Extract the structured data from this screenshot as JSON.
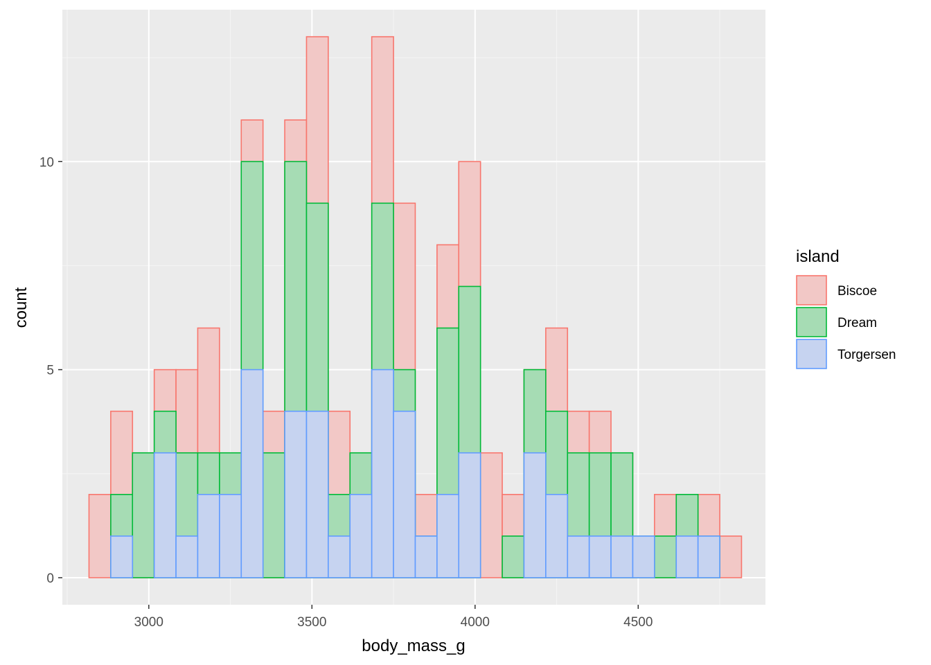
{
  "chart_data": {
    "type": "bar",
    "subtype": "stacked-histogram",
    "xlabel": "body_mass_g",
    "ylabel": "count",
    "xlim": [
      2735,
      4890
    ],
    "ylim": [
      -0.65,
      13.65
    ],
    "xticks": [
      3000,
      3500,
      4000,
      4500
    ],
    "yticks": [
      0,
      5,
      10
    ],
    "x_minor_ticks": [
      2750,
      3250,
      3750,
      4250,
      4750
    ],
    "y_minor_ticks": [
      2.5,
      7.5,
      12.5
    ],
    "grid": true,
    "bin_width": 66.67,
    "bin_centers": [
      2850,
      2916.7,
      2983.3,
      3050,
      3116.7,
      3183.3,
      3250,
      3316.7,
      3383.3,
      3450,
      3516.7,
      3583.3,
      3650,
      3716.7,
      3783.3,
      3850,
      3916.7,
      3983.3,
      4050,
      4116.7,
      4183.3,
      4250,
      4316.7,
      4383.3,
      4450,
      4516.7,
      4583.3,
      4650,
      4716.7,
      4783.3
    ],
    "series": [
      {
        "name": "Torgersen",
        "fill": "#c6d3f0",
        "stroke": "#619cff",
        "values": [
          0,
          1,
          0,
          3,
          1,
          2,
          2,
          5,
          0,
          4,
          4,
          1,
          2,
          5,
          4,
          1,
          2,
          3,
          0,
          0,
          3,
          2,
          1,
          1,
          1,
          1,
          0,
          1,
          1,
          0
        ]
      },
      {
        "name": "Dream",
        "fill": "#a6dcb4",
        "stroke": "#00ba38",
        "values": [
          0,
          1,
          3,
          1,
          2,
          1,
          1,
          5,
          3,
          6,
          5,
          1,
          1,
          4,
          1,
          0,
          4,
          4,
          0,
          1,
          2,
          2,
          2,
          2,
          2,
          0,
          1,
          1,
          0,
          0
        ]
      },
      {
        "name": "Biscoe",
        "fill": "#f2c8c6",
        "stroke": "#f8766d",
        "values": [
          2,
          2,
          0,
          1,
          2,
          3,
          0,
          1,
          1,
          1,
          4,
          2,
          0,
          4,
          4,
          1,
          2,
          3,
          3,
          1,
          0,
          2,
          1,
          1,
          0,
          0,
          1,
          0,
          1,
          1
        ]
      }
    ],
    "legend": {
      "title": "island",
      "position": "right",
      "order": [
        "Biscoe",
        "Dream",
        "Torgersen"
      ]
    },
    "colors": {
      "panel_background": "#ebebeb",
      "grid_major": "#ffffff",
      "grid_minor": "#f5f5f5"
    }
  }
}
